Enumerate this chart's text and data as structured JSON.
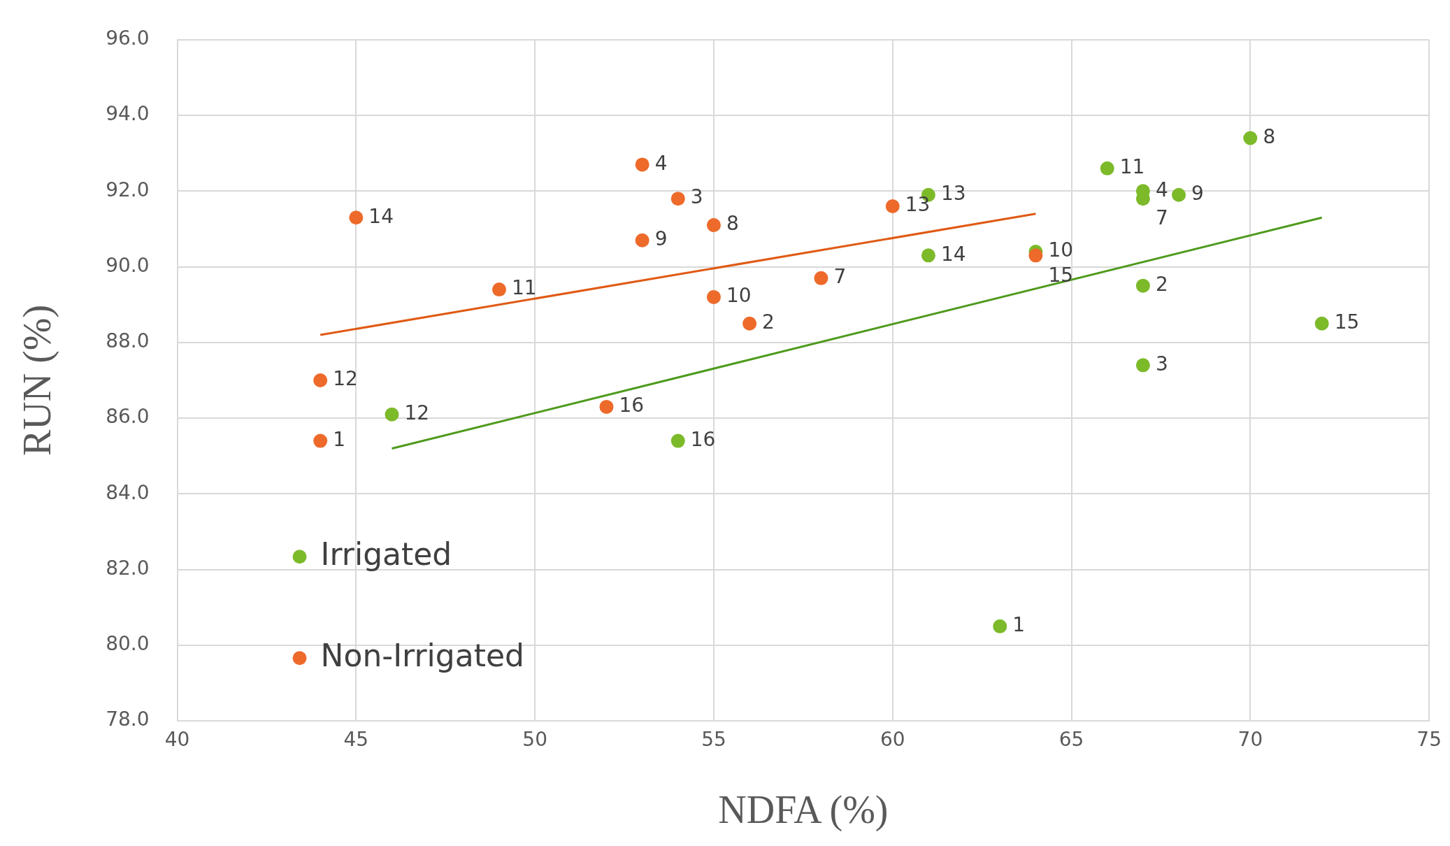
{
  "chart_data": {
    "type": "scatter",
    "xlabel": "NDFA (%)",
    "ylabel": "RUN (%)",
    "xlim": [
      40,
      75
    ],
    "xticks": [
      40,
      45,
      50,
      55,
      60,
      65,
      70,
      75
    ],
    "ylim": [
      78,
      96
    ],
    "yticks": [
      {
        "value": 78,
        "label": "78.0"
      },
      {
        "value": 80,
        "label": "80.0"
      },
      {
        "value": 82,
        "label": "82.0"
      },
      {
        "value": 84,
        "label": "84.0"
      },
      {
        "value": 86,
        "label": "86.0"
      },
      {
        "value": 88,
        "label": "88.0"
      },
      {
        "value": 90,
        "label": "90.0"
      },
      {
        "value": 92,
        "label": "92.0"
      },
      {
        "value": 94,
        "label": "94.0"
      },
      {
        "value": 96,
        "label": "96.0"
      }
    ],
    "grid": true,
    "legend": "bottom left",
    "marker": "circle",
    "series": [
      {
        "name": "Irrigated",
        "color": "#7cba2a",
        "x": [
          63,
          67,
          67,
          67,
          67,
          70,
          68,
          64,
          66,
          46,
          61,
          61,
          72,
          54
        ],
        "values": [
          80.5,
          89.5,
          87.4,
          92.0,
          91.8,
          93.4,
          91.9,
          90.4,
          92.6,
          86.1,
          91.9,
          90.3,
          88.5,
          85.4
        ]
      },
      {
        "name": "Non-Irrigated",
        "color": "#ed6a2a",
        "x": [
          44,
          56,
          54,
          53,
          58,
          55,
          53,
          55,
          49,
          44,
          60,
          45,
          64,
          52
        ],
        "values": [
          85.4,
          88.5,
          91.8,
          92.7,
          89.7,
          91.1,
          90.7,
          89.2,
          89.4,
          87.0,
          91.6,
          91.3,
          90.3,
          86.3
        ]
      },
      {
        "type": "line",
        "color": "#4e9a1c",
        "x": [
          46,
          72
        ],
        "values": [
          85.2,
          91.3
        ],
        "marker": "none"
      },
      {
        "type": "line",
        "color": "#e05a14",
        "x": [
          44,
          64
        ],
        "values": [
          88.2,
          91.4
        ],
        "marker": "none"
      }
    ],
    "annotations": [
      {
        "text": "1",
        "x": 63,
        "y": 80.5
      },
      {
        "text": "2",
        "x": 67,
        "y": 89.5
      },
      {
        "text": "3",
        "x": 67,
        "y": 87.4
      },
      {
        "text": "4",
        "x": 67,
        "y": 92.0
      },
      {
        "text": "7",
        "x": 67,
        "y": 91.8
      },
      {
        "text": "8",
        "x": 70,
        "y": 93.4
      },
      {
        "text": "9",
        "x": 68,
        "y": 91.9
      },
      {
        "text": "10",
        "x": 64,
        "y": 90.4
      },
      {
        "text": "11",
        "x": 66,
        "y": 92.6
      },
      {
        "text": "12",
        "x": 46,
        "y": 86.1
      },
      {
        "text": "13",
        "x": 61,
        "y": 91.9
      },
      {
        "text": "14",
        "x": 61,
        "y": 90.3
      },
      {
        "text": "15",
        "x": 72,
        "y": 88.5
      },
      {
        "text": "16",
        "x": 54,
        "y": 85.4
      },
      {
        "text": "1",
        "x": 44,
        "y": 85.4
      },
      {
        "text": "2",
        "x": 56,
        "y": 88.5
      },
      {
        "text": "3",
        "x": 54,
        "y": 91.8
      },
      {
        "text": "4",
        "x": 53,
        "y": 92.7
      },
      {
        "text": "7",
        "x": 58,
        "y": 89.7
      },
      {
        "text": "8",
        "x": 55,
        "y": 91.1
      },
      {
        "text": "9",
        "x": 53,
        "y": 90.7
      },
      {
        "text": "10",
        "x": 55,
        "y": 89.2
      },
      {
        "text": "11",
        "x": 49,
        "y": 89.4
      },
      {
        "text": "12",
        "x": 44,
        "y": 87.0
      },
      {
        "text": "13",
        "x": 60,
        "y": 91.6
      },
      {
        "text": "14",
        "x": 45,
        "y": 91.3
      },
      {
        "text": "15",
        "x": 64,
        "y": 90.3
      },
      {
        "text": "16",
        "x": 52,
        "y": 86.3
      }
    ]
  }
}
